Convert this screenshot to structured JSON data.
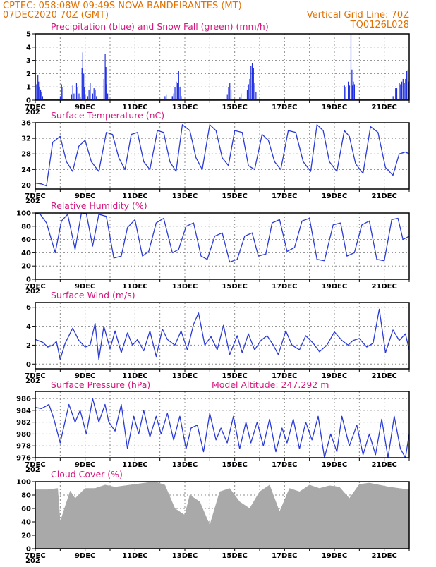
{
  "header": {
    "line1_left": "CPTEC:   058:08W-09:49S  NOVA BANDEIRANTES (MT)",
    "line2_left": "07DEC2020 70Z (GMT)",
    "line2_right": "Vertical Grid Line: 70Z",
    "line3_right": "TQ0126L028"
  },
  "colors": {
    "header": "#e07000",
    "title": "#d4197f",
    "line": "#2a3ad6",
    "precip": "#1f2fe0",
    "snow": "#22aa22",
    "cloud": "#a9a9a9"
  },
  "x_day_labels": [
    "7DEC",
    "9DEC",
    "11DEC",
    "13DEC",
    "15DEC",
    "17DEC",
    "19DEC",
    "21DEC"
  ],
  "x_year_fragment": "202",
  "chart_data": [
    {
      "type": "bar",
      "title": "Precipitation (blue) and Snow Fall (green) (mm/h)",
      "ylim": [
        0,
        5
      ],
      "yticks": [
        0,
        1,
        2,
        3,
        4,
        5
      ],
      "xlim": [
        0,
        15
      ],
      "grid": true,
      "series": [
        {
          "name": "Precipitation",
          "points": [
            [
              0.05,
              1.2
            ],
            [
              0.1,
              1.9
            ],
            [
              0.13,
              1.4
            ],
            [
              0.17,
              1.0
            ],
            [
              0.21,
              0.8
            ],
            [
              0.25,
              0.6
            ],
            [
              0.29,
              0.3
            ],
            [
              0.8,
              0.1
            ],
            [
              1.0,
              0.3
            ],
            [
              1.05,
              1.2
            ],
            [
              1.1,
              1.0
            ],
            [
              1.45,
              0.4
            ],
            [
              1.5,
              1.1
            ],
            [
              1.55,
              0.5
            ],
            [
              1.65,
              1.3
            ],
            [
              1.7,
              1.0
            ],
            [
              1.75,
              0.5
            ],
            [
              1.8,
              0.2
            ],
            [
              1.87,
              2.4
            ],
            [
              1.9,
              3.6
            ],
            [
              1.94,
              2.0
            ],
            [
              1.97,
              1.0
            ],
            [
              2.0,
              0.4
            ],
            [
              2.1,
              0.3
            ],
            [
              2.15,
              0.8
            ],
            [
              2.2,
              1.3
            ],
            [
              2.3,
              0.5
            ],
            [
              2.35,
              0.9
            ],
            [
              2.4,
              0.8
            ],
            [
              2.45,
              0.3
            ],
            [
              2.75,
              1.6
            ],
            [
              2.8,
              3.5
            ],
            [
              2.83,
              2.5
            ],
            [
              2.86,
              1.2
            ],
            [
              2.9,
              0.5
            ],
            [
              3.05,
              0.1
            ],
            [
              3.3,
              0.1
            ],
            [
              5.2,
              0.3
            ],
            [
              5.25,
              0.4
            ],
            [
              5.3,
              0.1
            ],
            [
              5.45,
              0.3
            ],
            [
              5.5,
              0.3
            ],
            [
              5.55,
              0.5
            ],
            [
              5.6,
              1.0
            ],
            [
              5.65,
              1.4
            ],
            [
              5.7,
              1.3
            ],
            [
              5.75,
              2.2
            ],
            [
              5.8,
              1.0
            ],
            [
              5.85,
              0.3
            ],
            [
              6.6,
              0.1
            ],
            [
              7.6,
              0.1
            ],
            [
              7.7,
              0.4
            ],
            [
              7.75,
              1.0
            ],
            [
              7.8,
              1.3
            ],
            [
              7.85,
              0.8
            ],
            [
              8.2,
              0.2
            ],
            [
              8.25,
              0.5
            ],
            [
              8.3,
              0.1
            ],
            [
              8.5,
              0.8
            ],
            [
              8.55,
              1.2
            ],
            [
              8.6,
              1.6
            ],
            [
              8.65,
              2.6
            ],
            [
              8.7,
              2.8
            ],
            [
              8.75,
              2.4
            ],
            [
              8.8,
              1.3
            ],
            [
              8.85,
              0.6
            ],
            [
              12.4,
              1.1
            ],
            [
              12.45,
              1.0
            ],
            [
              12.55,
              1.4
            ],
            [
              12.6,
              1.1
            ],
            [
              12.66,
              5.0
            ],
            [
              12.7,
              2.3
            ],
            [
              12.73,
              1.1
            ],
            [
              12.76,
              1.4
            ],
            [
              12.8,
              1.2
            ],
            [
              14.35,
              0.3
            ],
            [
              14.45,
              0.9
            ],
            [
              14.5,
              0.9
            ],
            [
              14.6,
              1.3
            ],
            [
              14.65,
              1.2
            ],
            [
              14.7,
              1.4
            ],
            [
              14.75,
              1.6
            ],
            [
              14.8,
              1.3
            ],
            [
              14.85,
              1.6
            ],
            [
              14.9,
              2.2
            ],
            [
              14.95,
              2.3
            ],
            [
              14.98,
              1.4
            ]
          ]
        },
        {
          "name": "Snow Fall",
          "points": []
        }
      ]
    },
    {
      "type": "line",
      "title": "Surface Temperature (nC)",
      "ylim": [
        19,
        36
      ],
      "yticks": [
        20,
        24,
        28,
        32,
        36
      ],
      "xlim": [
        0,
        15
      ],
      "grid": true,
      "series": [
        {
          "name": "Surface Temperature",
          "x": [
            0,
            0.25,
            0.45,
            0.7,
            1.0,
            1.25,
            1.5,
            1.75,
            2.0,
            2.25,
            2.55,
            2.85,
            3.1,
            3.35,
            3.6,
            3.85,
            4.1,
            4.35,
            4.6,
            4.9,
            5.15,
            5.4,
            5.65,
            5.9,
            6.2,
            6.45,
            6.7,
            7.0,
            7.25,
            7.5,
            7.75,
            8.0,
            8.3,
            8.55,
            8.8,
            9.1,
            9.35,
            9.6,
            9.85,
            10.15,
            10.45,
            10.75,
            11.05,
            11.3,
            11.55,
            11.8,
            12.1,
            12.4,
            12.6,
            12.85,
            13.15,
            13.45,
            13.75,
            14.05,
            14.35,
            14.6,
            14.85,
            15.0
          ],
          "values": [
            20.5,
            20.3,
            19.8,
            31.0,
            32.5,
            26.0,
            23.5,
            30.0,
            31.5,
            26.0,
            23.5,
            33.5,
            33.0,
            27.0,
            24.0,
            33.0,
            33.5,
            26.0,
            24.0,
            34.0,
            33.5,
            26.0,
            23.5,
            35.5,
            34.0,
            27.0,
            24.0,
            35.5,
            34.0,
            27.0,
            25.0,
            34.0,
            33.5,
            25.0,
            24.0,
            33.0,
            31.5,
            26.0,
            24.0,
            34.0,
            33.5,
            26.0,
            23.5,
            35.5,
            34.0,
            26.0,
            23.5,
            34.0,
            32.5,
            25.5,
            23.0,
            35.0,
            33.5,
            24.5,
            22.5,
            28.0,
            28.5,
            28.0
          ]
        }
      ]
    },
    {
      "type": "line",
      "title": "Relative Humidity (%)",
      "ylim": [
        0,
        100
      ],
      "yticks": [
        0,
        20,
        40,
        60,
        80,
        100
      ],
      "xlim": [
        0,
        15
      ],
      "grid": true,
      "series": [
        {
          "name": "Relative Humidity",
          "x": [
            0,
            0.2,
            0.45,
            0.8,
            1.05,
            1.3,
            1.6,
            1.85,
            2.05,
            2.3,
            2.55,
            2.85,
            3.15,
            3.45,
            3.7,
            4.0,
            4.3,
            4.55,
            4.85,
            5.15,
            5.5,
            5.75,
            6.05,
            6.35,
            6.65,
            6.9,
            7.2,
            7.5,
            7.8,
            8.1,
            8.4,
            8.7,
            8.95,
            9.25,
            9.5,
            9.8,
            10.1,
            10.4,
            10.7,
            11.0,
            11.3,
            11.6,
            11.95,
            12.25,
            12.5,
            12.8,
            13.1,
            13.4,
            13.7,
            14.0,
            14.3,
            14.55,
            14.75,
            15.0
          ],
          "values": [
            100,
            98,
            85,
            40,
            88,
            98,
            45,
            100,
            99,
            50,
            98,
            95,
            32,
            35,
            78,
            90,
            35,
            42,
            85,
            92,
            40,
            45,
            80,
            85,
            35,
            30,
            65,
            70,
            26,
            30,
            65,
            70,
            35,
            38,
            85,
            90,
            42,
            48,
            88,
            92,
            30,
            28,
            82,
            85,
            35,
            40,
            82,
            88,
            30,
            28,
            90,
            92,
            60,
            65
          ]
        }
      ]
    },
    {
      "type": "line",
      "title": "Surface Wind (m/s)",
      "ylim": [
        -0.5,
        6.5
      ],
      "yticks": [
        0,
        2,
        4,
        6
      ],
      "xlim": [
        0,
        15
      ],
      "grid": true,
      "series": [
        {
          "name": "Wind Speed",
          "x": [
            0,
            0.3,
            0.5,
            0.7,
            0.85,
            1.0,
            1.2,
            1.5,
            1.75,
            2.0,
            2.2,
            2.4,
            2.55,
            2.75,
            3.0,
            3.2,
            3.45,
            3.7,
            3.9,
            4.1,
            4.35,
            4.6,
            4.85,
            5.1,
            5.3,
            5.6,
            5.85,
            6.1,
            6.35,
            6.55,
            6.8,
            7.05,
            7.3,
            7.55,
            7.8,
            8.1,
            8.3,
            8.55,
            8.8,
            9.05,
            9.3,
            9.55,
            9.75,
            10.05,
            10.3,
            10.6,
            10.85,
            11.15,
            11.4,
            11.7,
            12.0,
            12.3,
            12.55,
            12.75,
            13.0,
            13.3,
            13.55,
            13.8,
            14.05,
            14.35,
            14.6,
            14.85,
            15.0
          ],
          "values": [
            2.6,
            2.3,
            1.8,
            2.0,
            2.4,
            0.5,
            2.2,
            3.8,
            2.5,
            1.8,
            2.0,
            4.3,
            0.5,
            4.0,
            1.6,
            3.5,
            1.2,
            3.3,
            2.0,
            2.6,
            1.4,
            3.5,
            0.8,
            3.7,
            2.6,
            2.0,
            3.5,
            1.5,
            4.2,
            5.4,
            2.0,
            2.9,
            1.5,
            4.1,
            1.0,
            3.0,
            1.2,
            3.2,
            1.5,
            2.5,
            3.0,
            2.0,
            1.0,
            3.5,
            2.0,
            1.5,
            3.0,
            2.2,
            1.3,
            2.0,
            3.4,
            2.5,
            2.0,
            2.5,
            2.7,
            1.8,
            2.2,
            5.8,
            1.2,
            3.6,
            2.5,
            3.2,
            1.5
          ]
        }
      ]
    },
    {
      "type": "line",
      "title": "Surface Pressure (hPa)",
      "annotation": "Model Altitude: 247.292 m",
      "ylim": [
        976,
        987.2
      ],
      "yticks": [
        976,
        978,
        980,
        982,
        984,
        986
      ],
      "xlim": [
        0,
        15
      ],
      "grid": true,
      "series": [
        {
          "name": "Surface Pressure",
          "x": [
            0,
            0.25,
            0.55,
            0.75,
            1.0,
            1.35,
            1.6,
            1.8,
            2.05,
            2.3,
            2.55,
            2.8,
            2.95,
            3.2,
            3.45,
            3.7,
            3.95,
            4.15,
            4.35,
            4.6,
            4.85,
            5.05,
            5.3,
            5.55,
            5.8,
            6.05,
            6.25,
            6.5,
            6.75,
            7.0,
            7.25,
            7.45,
            7.7,
            7.95,
            8.2,
            8.45,
            8.65,
            8.9,
            9.15,
            9.4,
            9.65,
            9.9,
            10.1,
            10.35,
            10.6,
            10.85,
            11.1,
            11.35,
            11.6,
            11.85,
            12.1,
            12.3,
            12.6,
            12.9,
            13.15,
            13.4,
            13.65,
            13.9,
            14.15,
            14.4,
            14.65,
            14.85,
            15.0
          ],
          "values": [
            984.5,
            984.3,
            985.0,
            982.5,
            978.5,
            985.0,
            982.0,
            984.0,
            980.0,
            986.0,
            982.0,
            985.0,
            982.0,
            980.5,
            985.0,
            977.5,
            983.0,
            980.0,
            984.0,
            979.5,
            983.0,
            980.0,
            983.5,
            979.0,
            983.0,
            977.5,
            981.0,
            981.5,
            977.0,
            983.5,
            979.0,
            981.0,
            978.5,
            983.0,
            977.5,
            982.0,
            978.5,
            982.0,
            978.0,
            982.5,
            977.0,
            981.0,
            978.5,
            982.5,
            977.5,
            982.0,
            979.0,
            983.0,
            976.0,
            980.0,
            977.0,
            983.0,
            978.0,
            981.5,
            976.5,
            980.0,
            976.5,
            982.5,
            976.0,
            983.0,
            977.5,
            976.0,
            980.0
          ]
        }
      ]
    },
    {
      "type": "area",
      "title": "Cloud Cover (%)",
      "ylim": [
        0,
        100
      ],
      "yticks": [
        0,
        20,
        40,
        60,
        80,
        100
      ],
      "xlim": [
        0,
        15
      ],
      "grid": true,
      "series": [
        {
          "name": "Cloud Cover",
          "x": [
            0,
            0.5,
            0.9,
            1.0,
            1.4,
            1.6,
            2.0,
            2.4,
            2.8,
            3.2,
            3.6,
            4.0,
            4.4,
            4.8,
            5.2,
            5.6,
            6.0,
            6.2,
            6.6,
            7.0,
            7.4,
            7.8,
            8.2,
            8.6,
            9.0,
            9.4,
            9.8,
            10.2,
            10.6,
            11.0,
            11.4,
            11.8,
            12.2,
            12.6,
            13.0,
            13.4,
            13.8,
            14.2,
            14.6,
            15.0
          ],
          "values": [
            88,
            88,
            90,
            40,
            86,
            75,
            90,
            90,
            95,
            92,
            94,
            96,
            98,
            100,
            95,
            60,
            50,
            80,
            70,
            35,
            85,
            90,
            70,
            60,
            85,
            95,
            55,
            90,
            85,
            95,
            90,
            94,
            92,
            75,
            96,
            98,
            95,
            92,
            90,
            88
          ]
        }
      ]
    }
  ]
}
